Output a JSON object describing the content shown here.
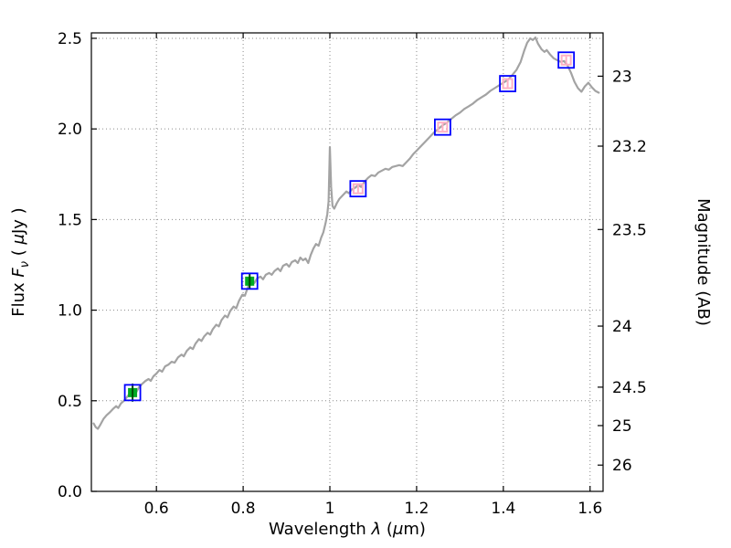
{
  "chart_data": {
    "type": "line",
    "title": "",
    "xlabel": "Wavelength λ (μm)",
    "ylabel_left": "Flux Fν ( μJy )",
    "ylabel_right": "Magnitude (AB)",
    "xlim": [
      0.45,
      1.63
    ],
    "ylim_flux": [
      0.0,
      2.53
    ],
    "grid": true,
    "legend": null,
    "xticks": {
      "values": [
        0.6,
        0.8,
        1.0,
        1.2,
        1.4,
        1.6
      ],
      "labels": [
        "0.6",
        "0.8",
        "1",
        "1.2",
        "1.4",
        "1.6"
      ]
    },
    "yticks_flux": {
      "values": [
        0.0,
        0.5,
        1.0,
        1.5,
        2.0,
        2.5
      ],
      "labels": [
        "0.0",
        "0.5",
        "1.0",
        "1.5",
        "2.0",
        "2.5"
      ]
    },
    "yticks_magnitude": {
      "labels": [
        "23",
        "23.2",
        "23.5",
        "24",
        "24.5",
        "25",
        "26"
      ],
      "flux_positions": [
        2.291,
        1.905,
        1.445,
        0.912,
        0.575,
        0.363,
        0.145
      ]
    },
    "labels_rich": {
      "xlabel_parts": [
        {
          "t": "Wavelength ",
          "i": 0
        },
        {
          "t": "λ",
          "i": 1
        },
        {
          "t": " (",
          "i": 0
        },
        {
          "t": "μ",
          "i": 1
        },
        {
          "t": "m)",
          "i": 0
        }
      ],
      "ylabel_left_parts": [
        {
          "t": "Flux ",
          "i": 0
        },
        {
          "t": "F",
          "i": 1
        },
        {
          "t": "ν",
          "i": 1,
          "sub": 1
        },
        {
          "t": " ( ",
          "i": 0
        },
        {
          "t": "μ",
          "i": 1
        },
        {
          "t": "Jy )",
          "i": 0
        }
      ]
    },
    "series": [
      {
        "name": "model_spectrum",
        "type": "line",
        "color": "#a3a3a3",
        "linewidth": 2.2,
        "points": [
          [
            0.455,
            0.375
          ],
          [
            0.46,
            0.355
          ],
          [
            0.465,
            0.345
          ],
          [
            0.47,
            0.365
          ],
          [
            0.478,
            0.4
          ],
          [
            0.485,
            0.42
          ],
          [
            0.492,
            0.435
          ],
          [
            0.5,
            0.455
          ],
          [
            0.507,
            0.47
          ],
          [
            0.512,
            0.46
          ],
          [
            0.518,
            0.485
          ],
          [
            0.525,
            0.5
          ],
          [
            0.532,
            0.52
          ],
          [
            0.54,
            0.545
          ],
          [
            0.548,
            0.56
          ],
          [
            0.553,
            0.545
          ],
          [
            0.56,
            0.575
          ],
          [
            0.568,
            0.595
          ],
          [
            0.575,
            0.61
          ],
          [
            0.582,
            0.62
          ],
          [
            0.587,
            0.61
          ],
          [
            0.593,
            0.635
          ],
          [
            0.6,
            0.65
          ],
          [
            0.607,
            0.67
          ],
          [
            0.613,
            0.66
          ],
          [
            0.62,
            0.69
          ],
          [
            0.628,
            0.7
          ],
          [
            0.635,
            0.715
          ],
          [
            0.642,
            0.71
          ],
          [
            0.65,
            0.74
          ],
          [
            0.658,
            0.755
          ],
          [
            0.663,
            0.745
          ],
          [
            0.67,
            0.775
          ],
          [
            0.678,
            0.795
          ],
          [
            0.684,
            0.785
          ],
          [
            0.69,
            0.815
          ],
          [
            0.698,
            0.84
          ],
          [
            0.704,
            0.83
          ],
          [
            0.71,
            0.855
          ],
          [
            0.718,
            0.875
          ],
          [
            0.724,
            0.865
          ],
          [
            0.73,
            0.895
          ],
          [
            0.738,
            0.92
          ],
          [
            0.744,
            0.91
          ],
          [
            0.75,
            0.945
          ],
          [
            0.758,
            0.97
          ],
          [
            0.764,
            0.96
          ],
          [
            0.77,
            0.995
          ],
          [
            0.778,
            1.02
          ],
          [
            0.784,
            1.01
          ],
          [
            0.79,
            1.05
          ],
          [
            0.798,
            1.085
          ],
          [
            0.804,
            1.08
          ],
          [
            0.81,
            1.12
          ],
          [
            0.815,
            1.155
          ],
          [
            0.82,
            1.165
          ],
          [
            0.826,
            1.15
          ],
          [
            0.832,
            1.175
          ],
          [
            0.84,
            1.185
          ],
          [
            0.846,
            1.17
          ],
          [
            0.852,
            1.195
          ],
          [
            0.86,
            1.205
          ],
          [
            0.866,
            1.195
          ],
          [
            0.872,
            1.215
          ],
          [
            0.88,
            1.23
          ],
          [
            0.886,
            1.215
          ],
          [
            0.892,
            1.245
          ],
          [
            0.9,
            1.255
          ],
          [
            0.906,
            1.24
          ],
          [
            0.912,
            1.265
          ],
          [
            0.92,
            1.275
          ],
          [
            0.926,
            1.26
          ],
          [
            0.932,
            1.29
          ],
          [
            0.938,
            1.275
          ],
          [
            0.944,
            1.285
          ],
          [
            0.95,
            1.26
          ],
          [
            0.956,
            1.305
          ],
          [
            0.962,
            1.34
          ],
          [
            0.968,
            1.365
          ],
          [
            0.974,
            1.355
          ],
          [
            0.98,
            1.4
          ],
          [
            0.985,
            1.43
          ],
          [
            0.99,
            1.48
          ],
          [
            0.994,
            1.53
          ],
          [
            0.997,
            1.6
          ],
          [
            1.0,
            1.9
          ],
          [
            1.003,
            1.68
          ],
          [
            1.006,
            1.575
          ],
          [
            1.01,
            1.56
          ],
          [
            1.016,
            1.59
          ],
          [
            1.022,
            1.615
          ],
          [
            1.03,
            1.635
          ],
          [
            1.038,
            1.655
          ],
          [
            1.044,
            1.645
          ],
          [
            1.05,
            1.665
          ],
          [
            1.058,
            1.675
          ],
          [
            1.066,
            1.69
          ],
          [
            1.072,
            1.68
          ],
          [
            1.08,
            1.71
          ],
          [
            1.088,
            1.73
          ],
          [
            1.096,
            1.745
          ],
          [
            1.104,
            1.74
          ],
          [
            1.112,
            1.76
          ],
          [
            1.12,
            1.77
          ],
          [
            1.128,
            1.78
          ],
          [
            1.136,
            1.775
          ],
          [
            1.144,
            1.79
          ],
          [
            1.152,
            1.795
          ],
          [
            1.16,
            1.8
          ],
          [
            1.168,
            1.795
          ],
          [
            1.176,
            1.815
          ],
          [
            1.184,
            1.835
          ],
          [
            1.192,
            1.86
          ],
          [
            1.2,
            1.88
          ],
          [
            1.21,
            1.905
          ],
          [
            1.22,
            1.93
          ],
          [
            1.23,
            1.955
          ],
          [
            1.24,
            1.98
          ],
          [
            1.25,
            2.0
          ],
          [
            1.26,
            2.02
          ],
          [
            1.27,
            2.035
          ],
          [
            1.28,
            2.055
          ],
          [
            1.29,
            2.075
          ],
          [
            1.3,
            2.09
          ],
          [
            1.31,
            2.11
          ],
          [
            1.32,
            2.125
          ],
          [
            1.33,
            2.14
          ],
          [
            1.34,
            2.16
          ],
          [
            1.35,
            2.175
          ],
          [
            1.36,
            2.19
          ],
          [
            1.37,
            2.21
          ],
          [
            1.38,
            2.225
          ],
          [
            1.39,
            2.24
          ],
          [
            1.4,
            2.255
          ],
          [
            1.41,
            2.27
          ],
          [
            1.42,
            2.295
          ],
          [
            1.43,
            2.325
          ],
          [
            1.44,
            2.37
          ],
          [
            1.448,
            2.43
          ],
          [
            1.455,
            2.475
          ],
          [
            1.462,
            2.5
          ],
          [
            1.468,
            2.49
          ],
          [
            1.474,
            2.505
          ],
          [
            1.48,
            2.47
          ],
          [
            1.488,
            2.44
          ],
          [
            1.495,
            2.425
          ],
          [
            1.5,
            2.435
          ],
          [
            1.508,
            2.41
          ],
          [
            1.516,
            2.39
          ],
          [
            1.524,
            2.38
          ],
          [
            1.532,
            2.37
          ],
          [
            1.54,
            2.375
          ],
          [
            1.548,
            2.35
          ],
          [
            1.556,
            2.31
          ],
          [
            1.564,
            2.26
          ],
          [
            1.572,
            2.225
          ],
          [
            1.58,
            2.205
          ],
          [
            1.588,
            2.235
          ],
          [
            1.596,
            2.255
          ],
          [
            1.604,
            2.23
          ],
          [
            1.612,
            2.21
          ],
          [
            1.62,
            2.2
          ]
        ]
      },
      {
        "name": "observed_photometry",
        "type": "scatter",
        "marker": "filled-square",
        "fill": "#00aa22",
        "edge_outer": "#0000ff",
        "errorbar_color": "#004d00",
        "points": [
          {
            "x": 0.545,
            "y": 0.545,
            "yerr": 0.05
          },
          {
            "x": 0.815,
            "y": 1.16,
            "yerr": 0.045
          }
        ]
      },
      {
        "name": "model_photometry",
        "type": "scatter",
        "marker": "open-square",
        "stroke": "#ffb0c4",
        "edge_outer": "#0000ff",
        "errorbar_color": "#ffb0c4",
        "points": [
          {
            "x": 1.065,
            "y": 1.67,
            "yerr": 0.02
          },
          {
            "x": 1.26,
            "y": 2.01,
            "yerr": 0.02
          },
          {
            "x": 1.41,
            "y": 2.25,
            "yerr": 0.02
          },
          {
            "x": 1.545,
            "y": 2.38,
            "yerr": 0.02
          }
        ]
      }
    ]
  }
}
